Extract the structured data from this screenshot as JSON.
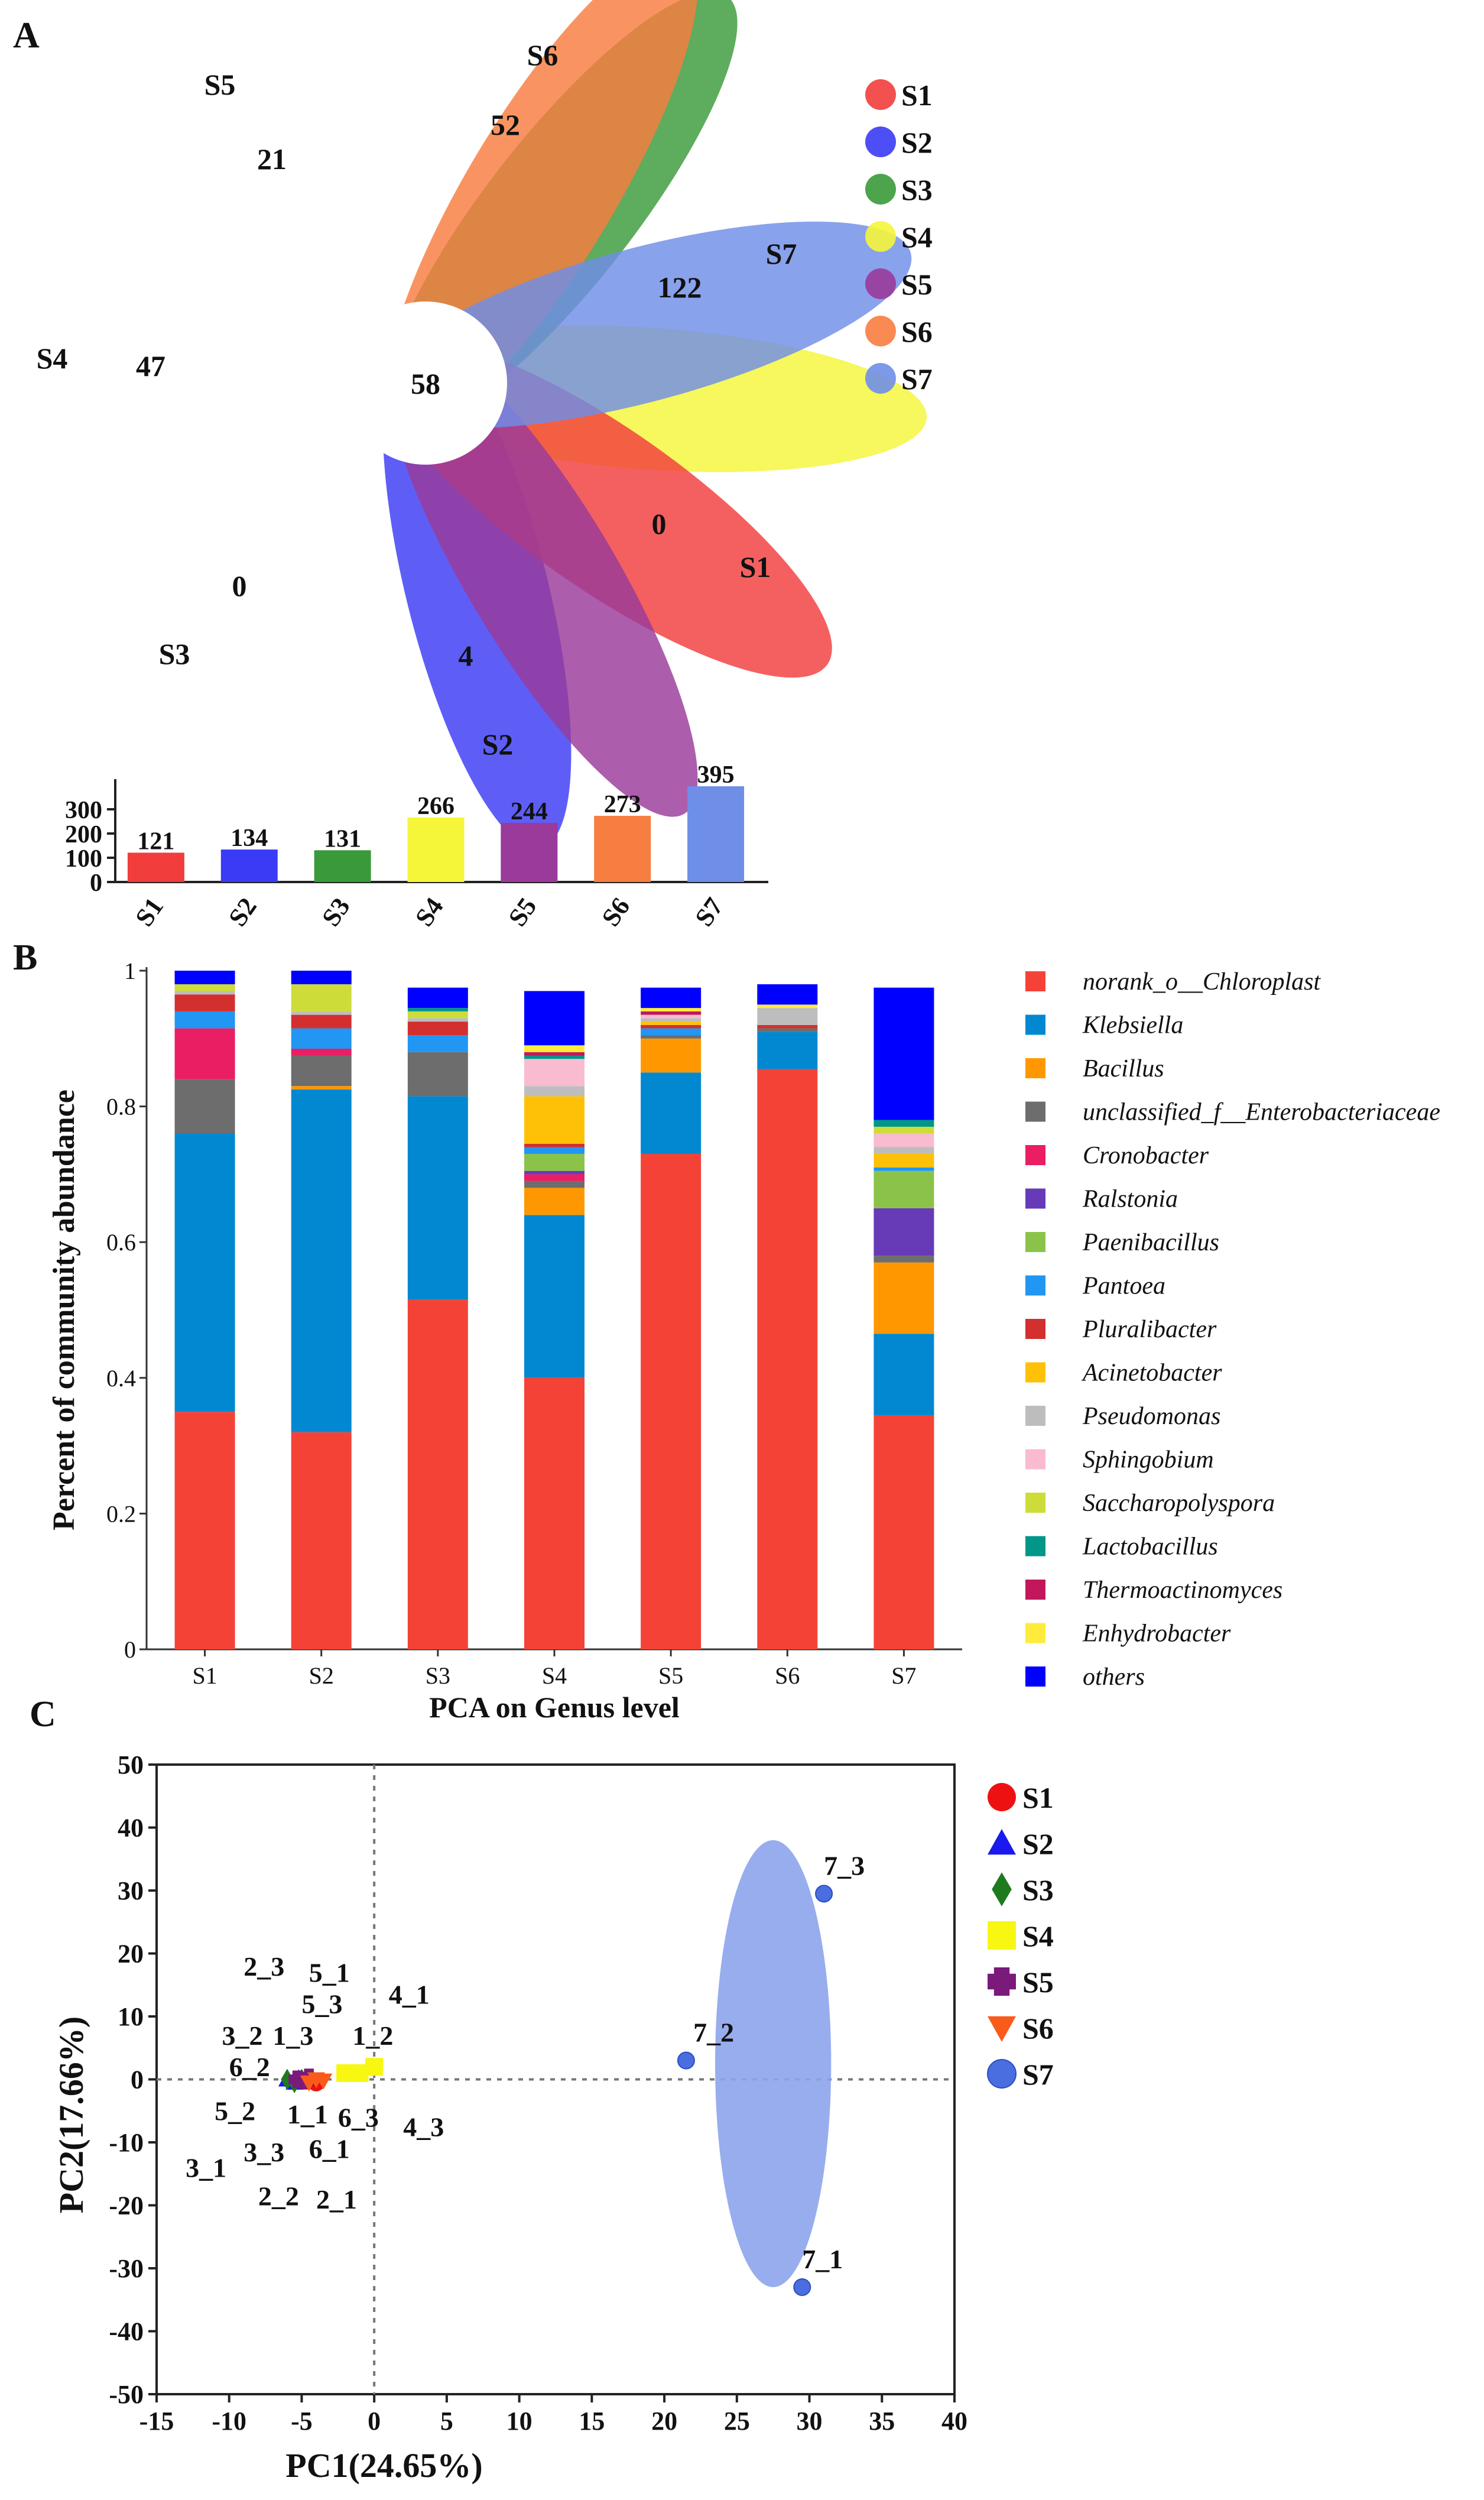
{
  "panels": {
    "a": "A",
    "b": "B",
    "c": "C"
  },
  "colors": {
    "S1": "#f23d3d",
    "S2": "#3b3bf5",
    "S3": "#3a9a3a",
    "S4": "#f5f53a",
    "S5": "#9a3a9a",
    "S6": "#f87d40",
    "S7": "#6f8ee8"
  },
  "chart_data": [
    {
      "type": "venn-flower",
      "legend": [
        "S1",
        "S2",
        "S3",
        "S4",
        "S5",
        "S6",
        "S7"
      ],
      "core": {
        "label": "58",
        "value": 58
      },
      "petals": [
        {
          "sample": "S1",
          "unique": "0"
        },
        {
          "sample": "S2",
          "unique": "4"
        },
        {
          "sample": "S3",
          "unique": "0"
        },
        {
          "sample": "S4",
          "unique": "47"
        },
        {
          "sample": "S5",
          "unique": "21"
        },
        {
          "sample": "S6",
          "unique": "52"
        },
        {
          "sample": "S7",
          "unique": "122"
        }
      ]
    },
    {
      "type": "bar",
      "categories": [
        "S1",
        "S2",
        "S3",
        "S4",
        "S5",
        "S6",
        "S7"
      ],
      "values": [
        121,
        134,
        131,
        266,
        244,
        273,
        395
      ],
      "yticks": [
        "0",
        "100",
        "200",
        "300"
      ],
      "ylim": [
        0,
        400
      ]
    },
    {
      "type": "bar",
      "stacked": true,
      "title": "",
      "ylabel": "Percent of community abundance",
      "xlabel": "PCA on Genus level",
      "categories": [
        "S1",
        "S2",
        "S3",
        "S4",
        "S5",
        "S6",
        "S7"
      ],
      "ylim": [
        0,
        1
      ],
      "yticks": [
        "0",
        "0.2",
        "0.4",
        "0.6",
        "0.8",
        "1"
      ],
      "series": [
        {
          "name": "norank_o__Chloroplast",
          "color": "#f44336",
          "values": [
            0.35,
            0.32,
            0.515,
            0.4,
            0.73,
            0.855,
            0.345
          ]
        },
        {
          "name": "Klebsiella",
          "color": "#0288d1",
          "values": [
            0.41,
            0.505,
            0.3,
            0.24,
            0.12,
            0.055,
            0.12
          ]
        },
        {
          "name": "Bacillus",
          "color": "#ff9800",
          "values": [
            0.0,
            0.005,
            0.0,
            0.04,
            0.05,
            0.0,
            0.105
          ]
        },
        {
          "name": "unclassified_f__Enterobacteriaceae",
          "color": "#6d6d6d",
          "values": [
            0.08,
            0.045,
            0.065,
            0.01,
            0.005,
            0.005,
            0.01
          ]
        },
        {
          "name": "Cronobacter",
          "color": "#e91e63",
          "values": [
            0.075,
            0.01,
            0.0,
            0.01,
            0.0,
            0.0,
            0.0
          ]
        },
        {
          "name": "Ralstonia",
          "color": "#673ab7",
          "values": [
            0.0,
            0.0,
            0.0,
            0.005,
            0.0,
            0.0,
            0.07
          ]
        },
        {
          "name": "Paenibacillus",
          "color": "#8bc34a",
          "values": [
            0.0,
            0.0,
            0.0,
            0.025,
            0.0,
            0.0,
            0.055
          ]
        },
        {
          "name": "Pantoea",
          "color": "#2196f3",
          "values": [
            0.025,
            0.03,
            0.025,
            0.01,
            0.01,
            0.0,
            0.005
          ]
        },
        {
          "name": "Pluralibacter",
          "color": "#d32f2f",
          "values": [
            0.025,
            0.02,
            0.02,
            0.005,
            0.005,
            0.005,
            0.0
          ]
        },
        {
          "name": "Acinetobacter",
          "color": "#ffc107",
          "values": [
            0.0,
            0.0,
            0.0,
            0.07,
            0.005,
            0.0,
            0.02
          ]
        },
        {
          "name": "Pseudomonas",
          "color": "#bdbdbd",
          "values": [
            0.005,
            0.005,
            0.005,
            0.015,
            0.005,
            0.025,
            0.01
          ]
        },
        {
          "name": "Sphingobium",
          "color": "#f8bbd0",
          "values": [
            0.0,
            0.0,
            0.0,
            0.04,
            0.005,
            0.0,
            0.02
          ]
        },
        {
          "name": "Saccharopolyspora",
          "color": "#cddc39",
          "values": [
            0.01,
            0.04,
            0.01,
            0.0,
            0.0,
            0.0,
            0.01
          ]
        },
        {
          "name": "Lactobacillus",
          "color": "#009688",
          "values": [
            0.0,
            0.0,
            0.005,
            0.005,
            0.0,
            0.0,
            0.01
          ]
        },
        {
          "name": "Thermoactinomyces",
          "color": "#c2185b",
          "values": [
            0.0,
            0.0,
            0.0,
            0.005,
            0.005,
            0.0,
            0.0
          ]
        },
        {
          "name": "Enhydrobacter",
          "color": "#ffeb3b",
          "values": [
            0.0,
            0.0,
            0.0,
            0.01,
            0.005,
            0.005,
            0.0
          ]
        },
        {
          "name": "others",
          "color": "#0000ff",
          "values": [
            0.02,
            0.02,
            0.03,
            0.08,
            0.03,
            0.03,
            0.195
          ]
        }
      ]
    },
    {
      "type": "scatter",
      "xlabel": "PC1(24.65%)",
      "ylabel": "PC2(17.66%)",
      "xlim": [
        -15,
        40
      ],
      "ylim": [
        -50,
        50
      ],
      "xticks": [
        "-15",
        "-10",
        "-5",
        "0",
        "5",
        "10",
        "15",
        "20",
        "25",
        "30",
        "35",
        "40"
      ],
      "yticks": [
        "-50",
        "-40",
        "-30",
        "-20",
        "-10",
        "0",
        "10",
        "20",
        "30",
        "40",
        "50"
      ],
      "legend": [
        {
          "name": "S1",
          "shape": "circle",
          "color": "#ee1111"
        },
        {
          "name": "S2",
          "shape": "triangle",
          "color": "#1a1aee"
        },
        {
          "name": "S3",
          "shape": "diamond",
          "color": "#1f7a1f"
        },
        {
          "name": "S4",
          "shape": "square",
          "color": "#f7f711"
        },
        {
          "name": "S5",
          "shape": "cross",
          "color": "#7a1a7a"
        },
        {
          "name": "S6",
          "shape": "triangle-down",
          "color": "#fa5a1a"
        },
        {
          "name": "S7",
          "shape": "circle",
          "color": "#4a6ee0"
        }
      ],
      "ellipse": {
        "group": "S7",
        "cx": 27.5,
        "cy": 2.5,
        "rx": 4.0,
        "ry": 35.5
      },
      "points": [
        {
          "group": "S1",
          "x": -4.0,
          "y": -0.5
        },
        {
          "group": "S1",
          "x": -4.5,
          "y": 0.0
        },
        {
          "group": "S1",
          "x": -5.0,
          "y": -0.2
        },
        {
          "group": "S2",
          "x": -6.0,
          "y": 0.0
        },
        {
          "group": "S2",
          "x": -5.5,
          "y": -0.5
        },
        {
          "group": "S2",
          "x": -5.2,
          "y": 0.2
        },
        {
          "group": "S3",
          "x": -5.5,
          "y": -0.5
        },
        {
          "group": "S3",
          "x": -6.0,
          "y": 0.0
        },
        {
          "group": "S3",
          "x": -5.0,
          "y": 0.0
        },
        {
          "group": "S4",
          "x": 0.0,
          "y": 2.0
        },
        {
          "group": "S4",
          "x": -2.0,
          "y": 1.0
        },
        {
          "group": "S4",
          "x": -1.0,
          "y": 1.0
        },
        {
          "group": "S5",
          "x": -4.8,
          "y": -0.2
        },
        {
          "group": "S5",
          "x": -5.3,
          "y": 0.0
        },
        {
          "group": "S5",
          "x": -4.5,
          "y": 0.3
        },
        {
          "group": "S6",
          "x": -4.5,
          "y": -0.5
        },
        {
          "group": "S6",
          "x": -3.5,
          "y": -0.2
        },
        {
          "group": "S6",
          "x": -4.0,
          "y": 0.0
        },
        {
          "group": "S7",
          "x": 21.5,
          "y": 3.0
        },
        {
          "group": "S7",
          "x": 31.0,
          "y": 29.5
        },
        {
          "group": "S7",
          "x": 29.5,
          "y": -33.0
        }
      ],
      "labels": [
        {
          "text": "2_3",
          "x": -9.0,
          "y": 16.5
        },
        {
          "text": "5_1",
          "x": -4.5,
          "y": 15.5
        },
        {
          "text": "5_3",
          "x": -5.0,
          "y": 10.5
        },
        {
          "text": "4_1",
          "x": 1.0,
          "y": 12.0
        },
        {
          "text": "3_2",
          "x": -10.5,
          "y": 5.5
        },
        {
          "text": "1_3",
          "x": -7.0,
          "y": 5.5
        },
        {
          "text": "1_2",
          "x": -1.5,
          "y": 5.5
        },
        {
          "text": "6_2",
          "x": -10.0,
          "y": 0.5
        },
        {
          "text": "5_2",
          "x": -11.0,
          "y": -6.5
        },
        {
          "text": "1_1",
          "x": -6.0,
          "y": -7.0
        },
        {
          "text": "6_3",
          "x": -2.5,
          "y": -7.5
        },
        {
          "text": "4_3",
          "x": 2.0,
          "y": -9.0
        },
        {
          "text": "3_3",
          "x": -9.0,
          "y": -13.0
        },
        {
          "text": "6_1",
          "x": -4.5,
          "y": -12.5
        },
        {
          "text": "3_1",
          "x": -13.0,
          "y": -15.5
        },
        {
          "text": "2_2",
          "x": -8.0,
          "y": -20.0
        },
        {
          "text": "2_1",
          "x": -4.0,
          "y": -20.5
        },
        {
          "text": "7_3",
          "x": 31.0,
          "y": 32.5
        },
        {
          "text": "7_2",
          "x": 22.0,
          "y": 6.0
        },
        {
          "text": "7_1",
          "x": 29.5,
          "y": -30.0
        }
      ]
    }
  ]
}
